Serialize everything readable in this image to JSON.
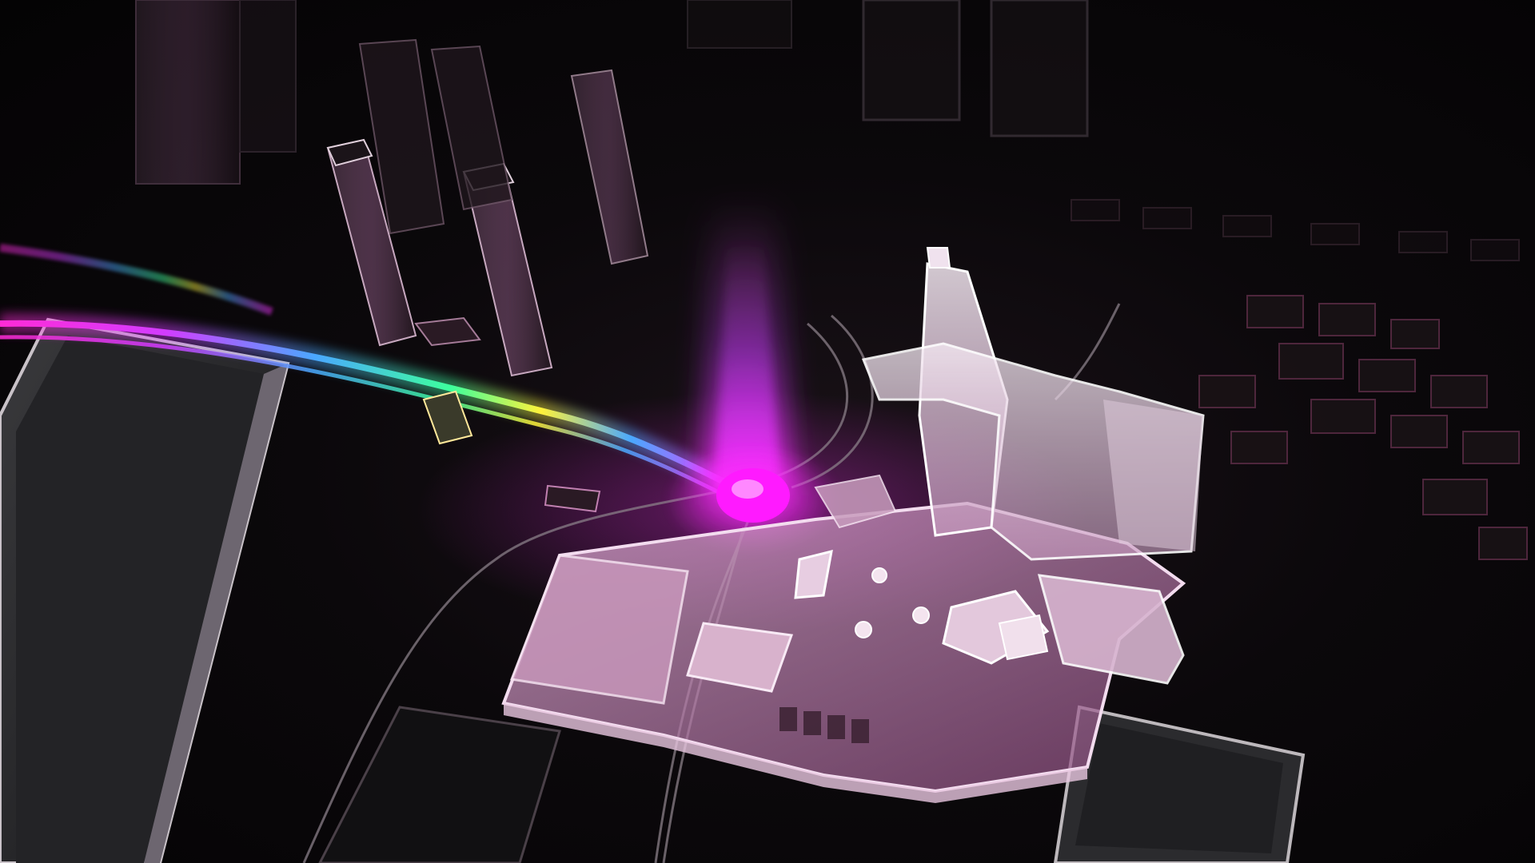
{
  "scene": {
    "description_tag": "render",
    "colors": {
      "background": "#050406",
      "floor": "#0e0a0d",
      "glass": "#e8d6e6",
      "glass_edge": "#ffffff",
      "beam": "#ff2bff",
      "hotspot": "#ff1aff",
      "dark_block": "#1a1a1d",
      "rainbow": [
        "#ff2bd6",
        "#c23cff",
        "#4aa8ff",
        "#39ff9c",
        "#fff23a",
        "#ff8a1f"
      ]
    },
    "elements": {
      "light_beam": "magenta-light-beam",
      "hotspot": "glowing-location-marker",
      "route": "rainbow-route-path",
      "landmark": "glass-landmark-building",
      "roads": "curved-road-lines",
      "towers": "glass-tower-buildings",
      "platform": "dark-glass-platform",
      "rooftops": "dark-rooftop-blocks"
    }
  }
}
